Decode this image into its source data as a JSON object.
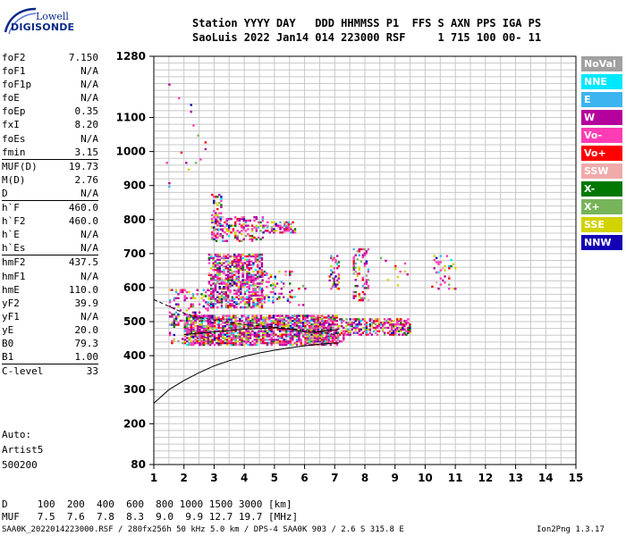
{
  "logo": {
    "line1": "Lowell",
    "line2": "DIGISONDE"
  },
  "header": {
    "line1": "Station YYYY DAY   DDD HHMMSS P1  FFS S AXN PPS IGA PS",
    "line2": "SaoLuis 2022 Jan14 014 223000 RSF     1 715 100 00- 11"
  },
  "params": [
    {
      "k": "foF2",
      "v": "7.150"
    },
    {
      "k": "foF1",
      "v": "N/A"
    },
    {
      "k": "foF1p",
      "v": "N/A"
    },
    {
      "k": "foE",
      "v": "N/A"
    },
    {
      "k": "foEp",
      "v": "0.35"
    },
    {
      "k": "fxI",
      "v": "8.20"
    },
    {
      "k": "foEs",
      "v": "N/A"
    },
    {
      "k": "fmin",
      "v": "3.15"
    },
    {
      "k": "MUF(D)",
      "v": "19.73",
      "div": true
    },
    {
      "k": "M(D)",
      "v": "2.76"
    },
    {
      "k": "D",
      "v": "N/A"
    },
    {
      "k": "h`F",
      "v": "460.0",
      "div": true
    },
    {
      "k": "h`F2",
      "v": "460.0"
    },
    {
      "k": "h`E",
      "v": "N/A"
    },
    {
      "k": "h`Es",
      "v": "N/A"
    },
    {
      "k": "hmF2",
      "v": "437.5",
      "div": true
    },
    {
      "k": "hmF1",
      "v": "N/A"
    },
    {
      "k": "hmE",
      "v": "110.0"
    },
    {
      "k": "yF2",
      "v": "39.9"
    },
    {
      "k": "yF1",
      "v": "N/A"
    },
    {
      "k": "yE",
      "v": "20.0"
    },
    {
      "k": "B0",
      "v": "79.3"
    },
    {
      "k": "B1",
      "v": "1.00"
    },
    {
      "k": "C-level",
      "v": "33",
      "div": true
    }
  ],
  "extra": {
    "auto": "Auto:",
    "artist": "Artist5",
    "version": "500200"
  },
  "legend": [
    {
      "label": "NoVal",
      "color": "#a0a0a0"
    },
    {
      "label": "NNE",
      "color": "#00e8ff"
    },
    {
      "label": "E",
      "color": "#3cb4f0"
    },
    {
      "label": "W",
      "color": "#b4009c"
    },
    {
      "label": "Vo-",
      "color": "#ff3cb4"
    },
    {
      "label": "Vo+",
      "color": "#ff0000"
    },
    {
      "label": "SSW",
      "color": "#f0aaaa"
    },
    {
      "label": "X-",
      "color": "#007800"
    },
    {
      "label": "X+",
      "color": "#78b45a"
    },
    {
      "label": "SSE",
      "color": "#d2d200"
    },
    {
      "label": "NNW",
      "color": "#1400b4"
    }
  ],
  "footer": {
    "line1": "D     100  200  400  600  800 1000 1500 3000 [km]",
    "line2": "MUF   7.5  7.6  7.8  8.3  9.0  9.9 12.7 19.7 [MHz]",
    "line3": "SAA0K_2022014223000.RSF / 280fx256h 50 kHz 5.0 km / DPS-4 SAA0K 903 / 2.6 S 315.8 E",
    "version": "Ion2Png 1.3.17"
  },
  "chart_data": {
    "type": "scatter",
    "x_ticks": [
      1,
      2,
      3,
      4,
      5,
      6,
      7,
      8,
      9,
      10,
      11,
      12,
      13,
      14,
      15
    ],
    "y_ticks": [
      80,
      200,
      300,
      400,
      500,
      600,
      700,
      800,
      900,
      1000,
      1100,
      1280
    ],
    "xlim": [
      1,
      15
    ],
    "ylim": [
      80,
      1280
    ],
    "grid": true,
    "legend_position": "right",
    "profile_curve": {
      "x": [
        1.0,
        1.5,
        2.0,
        2.5,
        3.0,
        3.5,
        4.0,
        4.5,
        5.0,
        5.5,
        6.0,
        6.5,
        7.0,
        7.15
      ],
      "y": [
        260,
        300,
        327,
        350,
        370,
        385,
        398,
        408,
        416,
        423,
        429,
        434,
        437,
        437.5
      ]
    },
    "trace": {
      "x": [
        2.0,
        2.5,
        3.0,
        3.5,
        4.0,
        4.5,
        5.0,
        5.5,
        6.0,
        6.3,
        6.6,
        7.0,
        7.15
      ],
      "y": [
        462,
        466,
        470,
        474,
        478,
        480,
        482,
        478,
        470,
        468,
        472,
        476,
        478
      ]
    },
    "trace_upper": {
      "x": [
        1.0,
        1.5,
        2.0,
        2.5,
        3.0,
        3.5,
        4.0,
        4.5,
        5.0,
        5.5,
        6.0,
        6.5,
        7.0
      ],
      "y": [
        565,
        545,
        525,
        512,
        505,
        498,
        492,
        488,
        484,
        480,
        475,
        470,
        462
      ]
    },
    "echo_regions": [
      {
        "x0": 2.0,
        "x1": 7.1,
        "y0": 435,
        "y1": 520,
        "dx": 0.07,
        "dy": 5,
        "density": 0.75
      },
      {
        "x0": 2.8,
        "x1": 4.6,
        "y0": 545,
        "y1": 700,
        "dx": 0.07,
        "dy": 5,
        "density": 0.6
      },
      {
        "x0": 4.5,
        "x1": 5.6,
        "y0": 560,
        "y1": 650,
        "dx": 0.07,
        "dy": 5,
        "density": 0.25
      },
      {
        "x0": 2.9,
        "x1": 4.6,
        "y0": 740,
        "y1": 810,
        "dx": 0.07,
        "dy": 5,
        "density": 0.35
      },
      {
        "x0": 2.9,
        "x1": 3.2,
        "y0": 750,
        "y1": 880,
        "dx": 0.06,
        "dy": 6,
        "density": 0.35
      },
      {
        "x0": 4.6,
        "x1": 5.7,
        "y0": 765,
        "y1": 795,
        "dx": 0.07,
        "dy": 5,
        "density": 0.5
      },
      {
        "x0": 1.5,
        "x1": 2.8,
        "y0": 440,
        "y1": 600,
        "dx": 0.07,
        "dy": 6,
        "density": 0.25
      },
      {
        "x0": 6.8,
        "x1": 7.1,
        "y0": 600,
        "y1": 700,
        "dx": 0.05,
        "dy": 6,
        "density": 0.35
      },
      {
        "x0": 7.6,
        "x1": 8.1,
        "y0": 560,
        "y1": 720,
        "dx": 0.06,
        "dy": 6,
        "density": 0.3
      },
      {
        "x0": 7.3,
        "x1": 9.5,
        "y0": 465,
        "y1": 510,
        "dx": 0.06,
        "dy": 5,
        "density": 0.5
      },
      {
        "x0": 6.3,
        "x1": 7.3,
        "y0": 445,
        "y1": 510,
        "dx": 0.06,
        "dy": 5,
        "density": 0.5
      },
      {
        "x0": 5.5,
        "x1": 6.0,
        "y0": 520,
        "y1": 620,
        "dx": 0.07,
        "dy": 8,
        "density": 0.12
      },
      {
        "x0": 8.5,
        "x1": 9.4,
        "y0": 610,
        "y1": 700,
        "dx": 0.08,
        "dy": 8,
        "density": 0.08
      },
      {
        "x0": 10.2,
        "x1": 11.0,
        "y0": 600,
        "y1": 700,
        "dx": 0.07,
        "dy": 6,
        "density": 0.18
      },
      {
        "x0": 1.4,
        "x1": 2.7,
        "y0": 900,
        "y1": 1200,
        "dx": 0.08,
        "dy": 10,
        "density": 0.02
      }
    ]
  }
}
